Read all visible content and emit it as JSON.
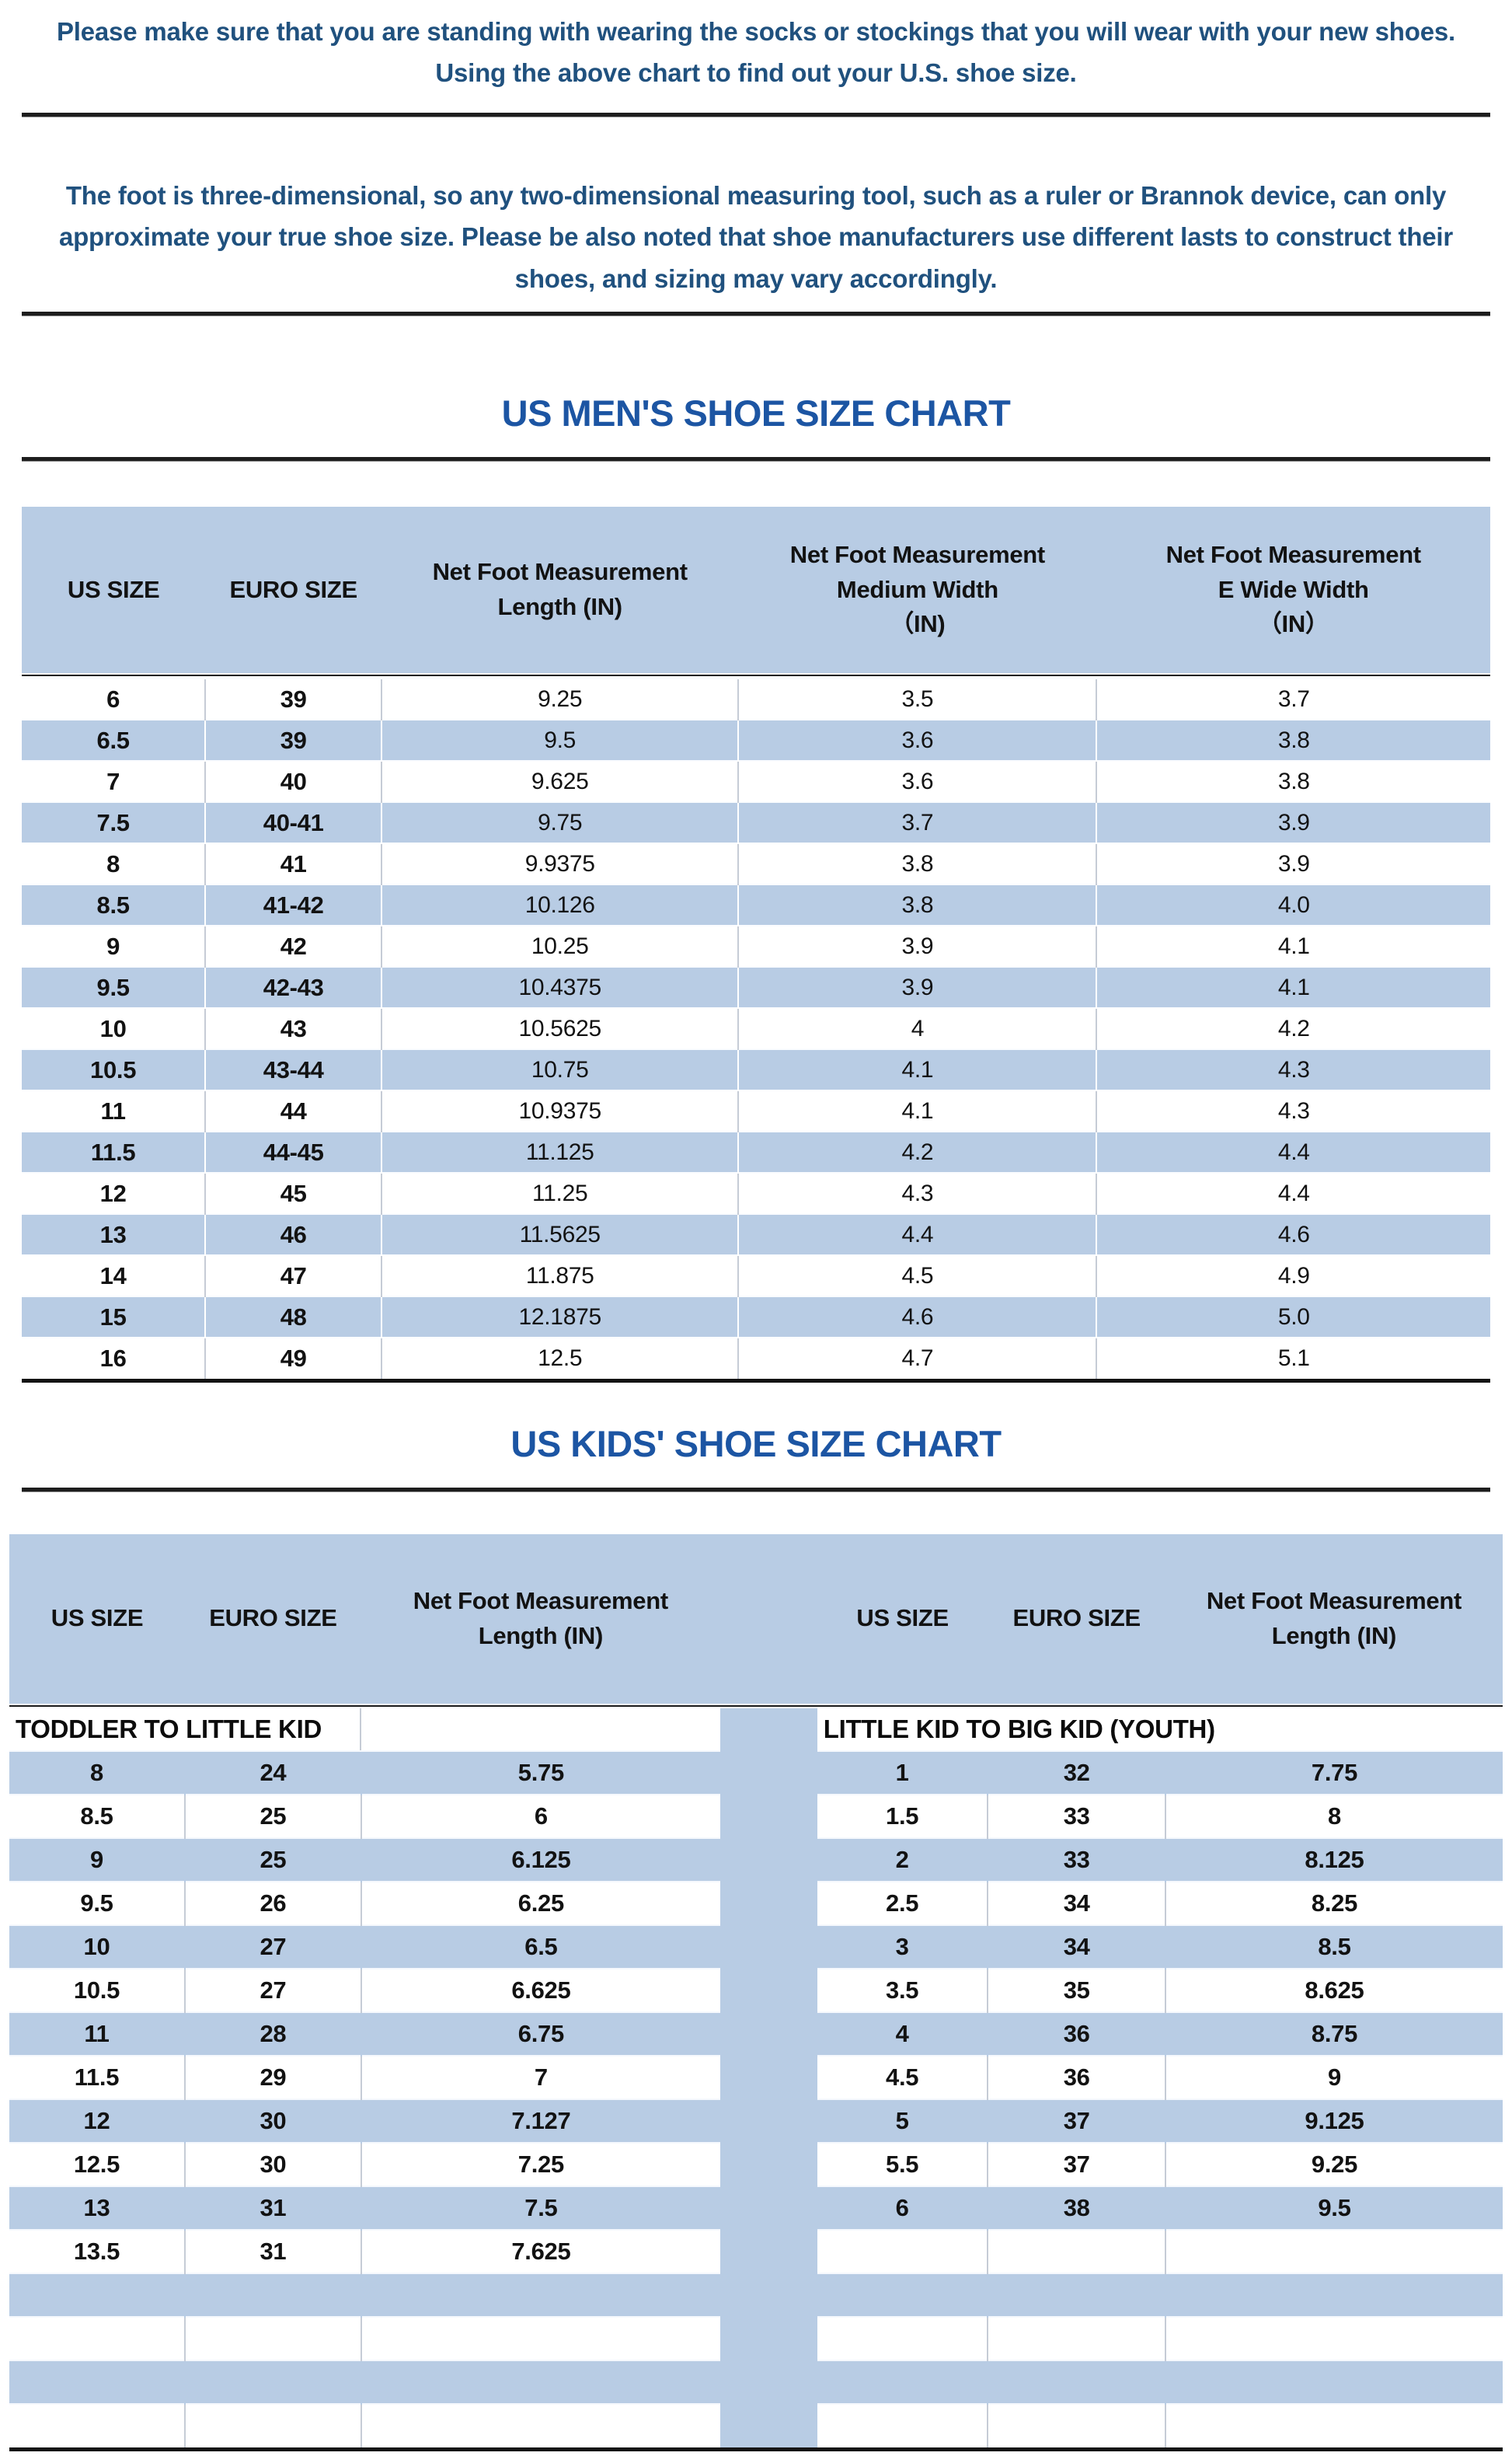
{
  "page": {
    "notes": [
      "Please make sure that you are standing with wearing the socks or stockings that you will wear with your new shoes.\nUsing the above chart to find out your U.S. shoe size.",
      "The foot is three-dimensional, so any two-dimensional measuring tool, such as a ruler or Brannok device, can only\napproximate your true shoe size. Please be also noted that shoe manufacturers use different lasts to construct their\nshoes, and sizing may vary accordingly."
    ]
  },
  "colors": {
    "band_blue": "#b8cce4",
    "title_blue": "#1c55a3",
    "note_blue": "#20517e",
    "line_black": "#1a1a1a"
  },
  "mens_chart": {
    "title": "US MEN'S SHOE SIZE CHART",
    "columns": [
      "US SIZE",
      "EURO SIZE",
      "Net Foot Measurement\nLength (IN)",
      "Net Foot Measurement\nMedium Width\n（IN)",
      "Net Foot Measurement\nE Wide Width\n（IN）"
    ],
    "rows": [
      [
        "6",
        "39",
        "9.25",
        "3.5",
        "3.7"
      ],
      [
        "6.5",
        "39",
        "9.5",
        "3.6",
        "3.8"
      ],
      [
        "7",
        "40",
        "9.625",
        "3.6",
        "3.8"
      ],
      [
        "7.5",
        "40-41",
        "9.75",
        "3.7",
        "3.9"
      ],
      [
        "8",
        "41",
        "9.9375",
        "3.8",
        "3.9"
      ],
      [
        "8.5",
        "41-42",
        "10.126",
        "3.8",
        "4.0"
      ],
      [
        "9",
        "42",
        "10.25",
        "3.9",
        "4.1"
      ],
      [
        "9.5",
        "42-43",
        "10.4375",
        "3.9",
        "4.1"
      ],
      [
        "10",
        "43",
        "10.5625",
        "4",
        "4.2"
      ],
      [
        "10.5",
        "43-44",
        "10.75",
        "4.1",
        "4.3"
      ],
      [
        "11",
        "44",
        "10.9375",
        "4.1",
        "4.3"
      ],
      [
        "11.5",
        "44-45",
        "11.125",
        "4.2",
        "4.4"
      ],
      [
        "12",
        "45",
        "11.25",
        "4.3",
        "4.4"
      ],
      [
        "13",
        "46",
        "11.5625",
        "4.4",
        "4.6"
      ],
      [
        "14",
        "47",
        "11.875",
        "4.5",
        "4.9"
      ],
      [
        "15",
        "48",
        "12.1875",
        "4.6",
        "5.0"
      ],
      [
        "16",
        "49",
        "12.5",
        "4.7",
        "5.1"
      ]
    ]
  },
  "kids_chart": {
    "title": "US KIDS' SHOE SIZE CHART",
    "left_columns": [
      "US SIZE",
      "EURO SIZE",
      "Net Foot Measurement\nLength (IN)"
    ],
    "right_columns": [
      "US SIZE",
      "EURO SIZE",
      "Net Foot Measurement\nLength (IN)"
    ],
    "left_section_label": "TODDLER TO LITTLE KID",
    "right_section_label": "LITTLE KID TO BIG KID (YOUTH)",
    "left_rows": [
      [
        "8",
        "24",
        "5.75"
      ],
      [
        "8.5",
        "25",
        "6"
      ],
      [
        "9",
        "25",
        "6.125"
      ],
      [
        "9.5",
        "26",
        "6.25"
      ],
      [
        "10",
        "27",
        "6.5"
      ],
      [
        "10.5",
        "27",
        "6.625"
      ],
      [
        "11",
        "28",
        "6.75"
      ],
      [
        "11.5",
        "29",
        "7"
      ],
      [
        "12",
        "30",
        "7.127"
      ],
      [
        "12.5",
        "30",
        "7.25"
      ],
      [
        "13",
        "31",
        "7.5"
      ],
      [
        "13.5",
        "31",
        "7.625"
      ],
      [
        "",
        "",
        ""
      ],
      [
        "",
        "",
        ""
      ],
      [
        "",
        "",
        ""
      ],
      [
        "",
        "",
        ""
      ]
    ],
    "right_rows": [
      [
        "1",
        "32",
        "7.75"
      ],
      [
        "1.5",
        "33",
        "8"
      ],
      [
        "2",
        "33",
        "8.125"
      ],
      [
        "2.5",
        "34",
        "8.25"
      ],
      [
        "3",
        "34",
        "8.5"
      ],
      [
        "3.5",
        "35",
        "8.625"
      ],
      [
        "4",
        "36",
        "8.75"
      ],
      [
        "4.5",
        "36",
        "9"
      ],
      [
        "5",
        "37",
        "9.125"
      ],
      [
        "5.5",
        "37",
        "9.25"
      ],
      [
        "6",
        "38",
        "9.5"
      ],
      [
        "",
        "",
        ""
      ],
      [
        "",
        "",
        ""
      ],
      [
        "",
        "",
        ""
      ],
      [
        "",
        "",
        ""
      ],
      [
        "",
        "",
        ""
      ]
    ]
  }
}
